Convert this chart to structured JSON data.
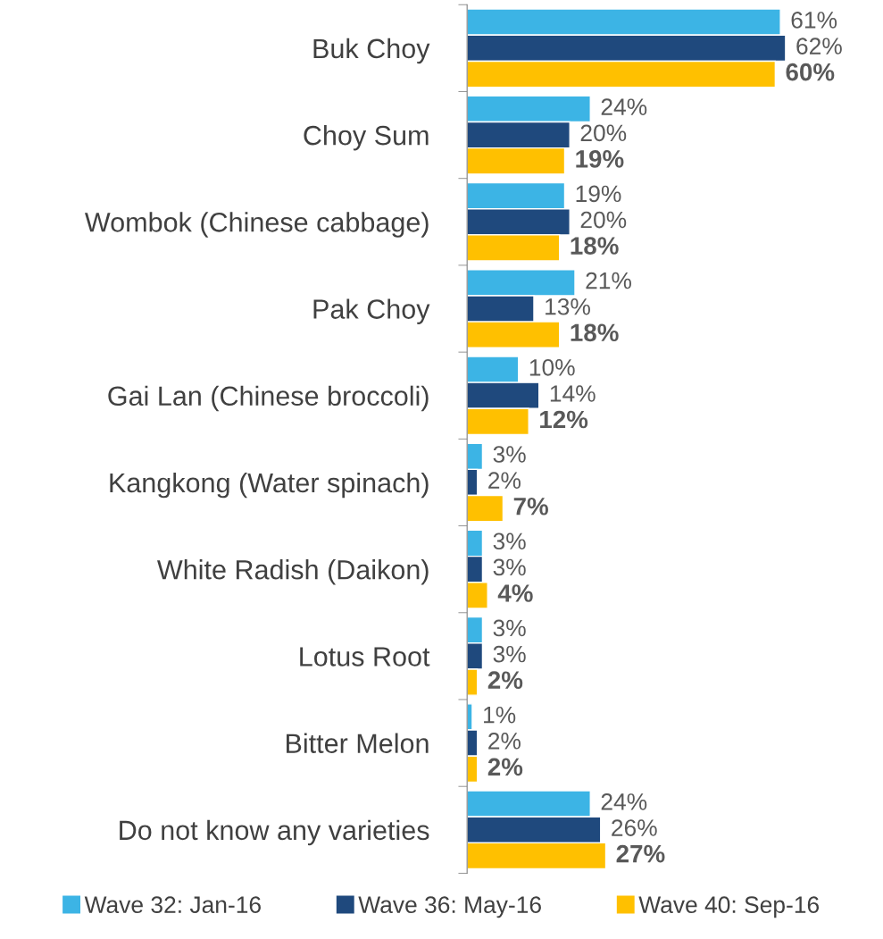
{
  "chart_data": {
    "type": "bar",
    "orientation": "horizontal",
    "categories": [
      "Buk Choy",
      "Choy Sum",
      "Wombok (Chinese cabbage)",
      "Pak Choy",
      "Gai Lan (Chinese broccoli)",
      "Kangkong (Water spinach)",
      "White Radish (Daikon)",
      "Lotus Root",
      "Bitter Melon",
      "Do not know any varieties"
    ],
    "series": [
      {
        "name": "Wave 32: Jan-16",
        "color": "#3cb4e5",
        "values": [
          61,
          24,
          19,
          21,
          10,
          3,
          3,
          3,
          1,
          24
        ],
        "value_labels": [
          "61%",
          "24%",
          "19%",
          "21%",
          "10%",
          "3%",
          "3%",
          "3%",
          "1%",
          "24%"
        ]
      },
      {
        "name": "Wave 36: May-16",
        "color": "#1f497d",
        "values": [
          62,
          20,
          20,
          13,
          14,
          2,
          3,
          3,
          2,
          26
        ],
        "value_labels": [
          "62%",
          "20%",
          "20%",
          "13%",
          "14%",
          "2%",
          "3%",
          "3%",
          "2%",
          "26%"
        ]
      },
      {
        "name": "Wave 40: Sep-16",
        "color": "#ffc000",
        "values": [
          60,
          19,
          18,
          18,
          12,
          7,
          4,
          2,
          2,
          27
        ],
        "value_labels": [
          "60%",
          "19%",
          "18%",
          "18%",
          "12%",
          "7%",
          "4%",
          "2%",
          "2%",
          "27%"
        ]
      }
    ],
    "grid": false,
    "legend": "bottom",
    "tick_labels": "y"
  }
}
